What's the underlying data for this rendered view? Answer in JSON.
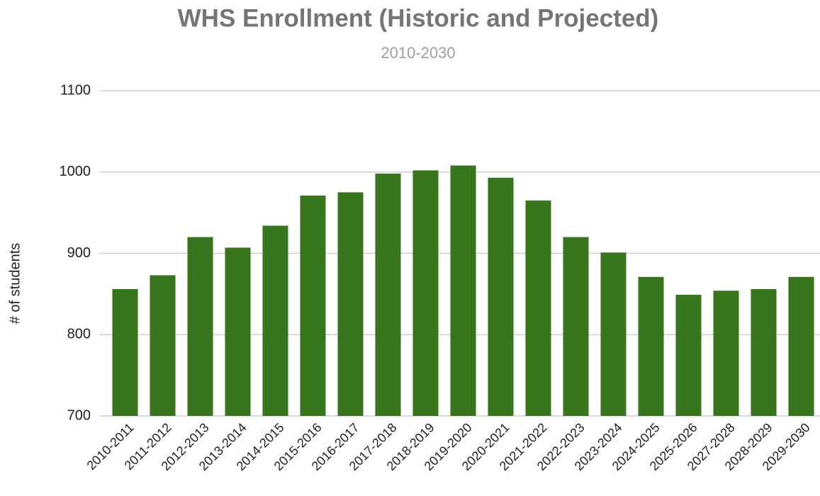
{
  "chart_data": {
    "type": "bar",
    "title": "WHS Enrollment (Historic and Projected)",
    "subtitle": "2010-2030",
    "y_label": "# of students",
    "categories": [
      "2010-2011",
      "2011-2012",
      "2012-2013",
      "2013-2014",
      "2014-2015",
      "2015-2016",
      "2016-2017",
      "2017-2018",
      "2018-2019",
      "2019-2020",
      "2020-2021",
      "2021-2022",
      "2022-2023",
      "2023-2024",
      "2024-2025",
      "2025-2026",
      "2027-2028",
      "2028-2029",
      "2029-2030"
    ],
    "values": [
      856,
      873,
      920,
      907,
      934,
      971,
      975,
      998,
      1002,
      1008,
      993,
      965,
      920,
      901,
      871,
      849,
      854,
      856,
      871
    ],
    "color": "#38761d",
    "ylim": [
      700,
      1100
    ],
    "yticks": [
      700,
      800,
      900,
      1000,
      1100
    ],
    "grid": true
  }
}
